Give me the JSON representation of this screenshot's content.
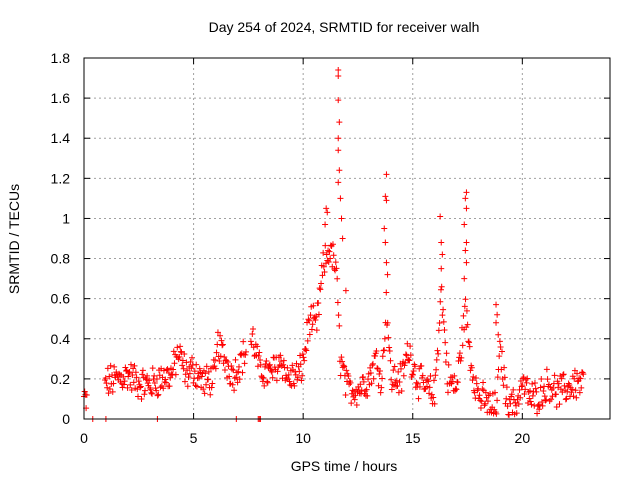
{
  "chart_data": {
    "type": "scatter",
    "title": "Day 254 of 2024, SRMTID for receiver walh",
    "xlabel": "GPS time / hours",
    "ylabel": "SRMTID / TECUs",
    "xlim": [
      0,
      24
    ],
    "ylim": [
      0,
      1.8
    ],
    "xticks": [
      0,
      5,
      10,
      15,
      20
    ],
    "yticks": [
      0,
      0.2,
      0.4,
      0.6,
      0.8,
      1,
      1.2,
      1.4,
      1.6,
      1.8
    ],
    "xtick_labels": [
      "0",
      "5",
      "10",
      "15",
      "20"
    ],
    "ytick_labels": [
      "0",
      "0.2",
      "0.4",
      "0.6",
      "0.8",
      "1",
      "1.2",
      "1.4",
      "1.6",
      "1.8"
    ],
    "grid": true,
    "marker": "+",
    "series": [
      {
        "name": "SRMTID",
        "color": "#ff0000",
        "baseline": [
          [
            0.0,
            0.1
          ],
          [
            0.4,
            0.02
          ],
          [
            1.0,
            0.18
          ],
          [
            1.5,
            0.2
          ],
          [
            2.0,
            0.22
          ],
          [
            2.5,
            0.18
          ],
          [
            3.0,
            0.17
          ],
          [
            3.5,
            0.2
          ],
          [
            4.0,
            0.22
          ],
          [
            4.3,
            0.33
          ],
          [
            4.7,
            0.22
          ],
          [
            5.0,
            0.25
          ],
          [
            5.5,
            0.18
          ],
          [
            6.0,
            0.22
          ],
          [
            6.1,
            0.38
          ],
          [
            6.4,
            0.3
          ],
          [
            6.8,
            0.22
          ],
          [
            7.2,
            0.3
          ],
          [
            7.7,
            0.4
          ],
          [
            8.0,
            0.25
          ],
          [
            8.5,
            0.22
          ],
          [
            9.0,
            0.3
          ],
          [
            9.3,
            0.2
          ],
          [
            9.8,
            0.22
          ],
          [
            10.0,
            0.28
          ],
          [
            10.3,
            0.5
          ],
          [
            10.6,
            0.45
          ],
          [
            10.9,
            0.75
          ],
          [
            11.2,
            0.85
          ],
          [
            11.5,
            0.75
          ],
          [
            11.7,
            0.3
          ],
          [
            12.0,
            0.15
          ],
          [
            12.5,
            0.15
          ],
          [
            13.0,
            0.2
          ],
          [
            13.3,
            0.3
          ],
          [
            13.6,
            0.2
          ],
          [
            13.8,
            0.6
          ],
          [
            14.0,
            0.2
          ],
          [
            14.5,
            0.2
          ],
          [
            14.8,
            0.35
          ],
          [
            15.2,
            0.2
          ],
          [
            15.6,
            0.15
          ],
          [
            16.0,
            0.12
          ],
          [
            16.3,
            0.65
          ],
          [
            16.6,
            0.2
          ],
          [
            17.0,
            0.15
          ],
          [
            17.4,
            0.55
          ],
          [
            17.7,
            0.25
          ],
          [
            18.0,
            0.12
          ],
          [
            18.4,
            0.07
          ],
          [
            18.8,
            0.05
          ],
          [
            19.0,
            0.35
          ],
          [
            19.3,
            0.08
          ],
          [
            19.7,
            0.07
          ],
          [
            20.0,
            0.18
          ],
          [
            20.4,
            0.1
          ],
          [
            20.8,
            0.12
          ],
          [
            21.2,
            0.18
          ],
          [
            21.6,
            0.13
          ],
          [
            22.0,
            0.15
          ],
          [
            22.4,
            0.18
          ],
          [
            22.8,
            0.18
          ]
        ],
        "spikes": [
          [
            11.6,
            1.74
          ],
          [
            11.6,
            1.71
          ],
          [
            11.6,
            1.59
          ],
          [
            11.65,
            1.48
          ],
          [
            11.6,
            1.4
          ],
          [
            11.6,
            1.34
          ],
          [
            11.65,
            1.24
          ],
          [
            11.6,
            1.18
          ],
          [
            11.7,
            1.1
          ],
          [
            11.75,
            1.0
          ],
          [
            11.8,
            0.9
          ],
          [
            11.05,
            1.05
          ],
          [
            11.1,
            1.03
          ],
          [
            11.0,
            0.97
          ],
          [
            11.95,
            0.64
          ],
          [
            13.8,
            1.22
          ],
          [
            13.75,
            1.11
          ],
          [
            13.8,
            1.09
          ],
          [
            13.7,
            0.95
          ],
          [
            13.75,
            0.88
          ],
          [
            13.8,
            0.78
          ],
          [
            13.85,
            0.72
          ],
          [
            16.25,
            1.01
          ],
          [
            16.3,
            0.88
          ],
          [
            16.35,
            0.82
          ],
          [
            16.3,
            0.75
          ],
          [
            17.45,
            1.13
          ],
          [
            17.4,
            1.1
          ],
          [
            17.45,
            1.05
          ],
          [
            17.35,
            0.97
          ],
          [
            17.45,
            0.88
          ],
          [
            17.4,
            0.84
          ],
          [
            17.45,
            0.78
          ],
          [
            17.35,
            0.7
          ],
          [
            18.8,
            0.57
          ],
          [
            18.85,
            0.52
          ],
          [
            18.8,
            0.48
          ],
          [
            18.9,
            0.42
          ],
          [
            8.0,
            0.0
          ],
          [
            8.05,
            0.0
          ],
          [
            7.95,
            0.0
          ],
          [
            1.0,
            0.0
          ],
          [
            3.35,
            0.0
          ],
          [
            6.95,
            0.0
          ],
          [
            0.4,
            0.0
          ]
        ]
      }
    ]
  }
}
